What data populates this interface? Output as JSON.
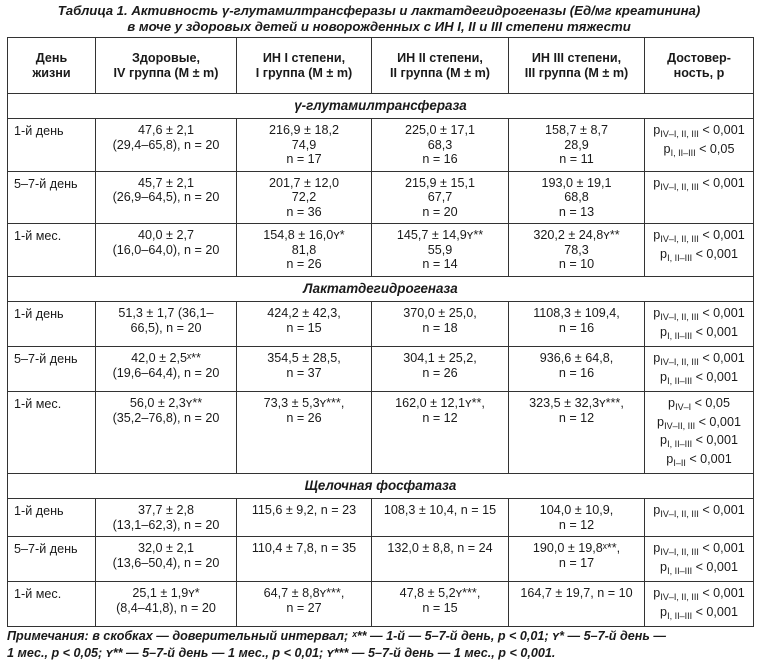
{
  "caption": {
    "line1": "Таблица 1. Активность γ-глутамилтрансферазы и лактатдегидрогеназы (Ед/мг креатинина)",
    "line2": "в моче у здоровых детей и новорожденных с ИН I, II и III степени тяжести"
  },
  "headers": [
    [
      "День",
      "жизни"
    ],
    [
      "Здоровые,",
      "IV группа (M ± m)"
    ],
    [
      "ИН I степени,",
      "I группа (M ± m)"
    ],
    [
      "ИН II степени,",
      "II группа (M ± m)"
    ],
    [
      "ИН III степени,",
      "III группа (M ± m)"
    ],
    [
      "Достовер-",
      "ность, p"
    ]
  ],
  "sections": [
    {
      "title": "γ-глутамилтрансфераза",
      "rows": [
        {
          "day": "1-й день",
          "cells": [
            [
              "47,6 ± 2,1",
              "(29,4–65,8), n = 20"
            ],
            [
              "216,9 ± 18,2",
              "74,9",
              "n = 17"
            ],
            [
              "225,0 ± 17,1",
              "68,3",
              "n = 16"
            ],
            [
              "158,7 ± 8,7",
              "28,9",
              "n = 11"
            ]
          ],
          "p": [
            {
              "s": "IV–I, II, III",
              "t": " < 0,001"
            },
            {
              "s": "I, II–III",
              "t": " < 0,05"
            }
          ]
        },
        {
          "day": "5–7-й день",
          "cells": [
            [
              "45,7 ± 2,1",
              "(26,9–64,5), n = 20"
            ],
            [
              "201,7 ± 12,0",
              "72,2",
              "n = 36"
            ],
            [
              "215,9 ± 15,1",
              "67,7",
              "n = 20"
            ],
            [
              "193,0 ± 19,1",
              "68,8",
              "n = 13"
            ]
          ],
          "p": [
            {
              "s": "IV–I, II, III",
              "t": " < 0,001"
            }
          ]
        },
        {
          "day": "1-й мес.",
          "cells": [
            [
              "40,0 ± 2,7",
              "(16,0–64,0), n = 20"
            ],
            [
              "154,8 ± 16,0ʏ*",
              "81,8",
              "n = 26"
            ],
            [
              "145,7 ± 14,9ʏ**",
              "55,9",
              "n = 14"
            ],
            [
              "320,2 ± 24,8ʏ**",
              "78,3",
              "n = 10"
            ]
          ],
          "p": [
            {
              "s": "IV–I, II, III",
              "t": " < 0,001"
            },
            {
              "s": "I, II–III",
              "t": " < 0,001"
            }
          ]
        }
      ]
    },
    {
      "title": "Лактатдегидрогеназа",
      "rows": [
        {
          "day": "1-й день",
          "cells": [
            [
              "51,3 ± 1,7 (36,1–",
              "66,5), n = 20"
            ],
            [
              "424,2 ± 42,3,",
              "n = 15"
            ],
            [
              "370,0 ± 25,0,",
              "n = 18"
            ],
            [
              "1108,3 ± 109,4,",
              "n = 16"
            ]
          ],
          "p": [
            {
              "s": "IV–I, II, III",
              "t": " < 0,001"
            },
            {
              "s": "I, II–III",
              "t": " < 0,001"
            }
          ]
        },
        {
          "day": "5–7-й день",
          "cells": [
            [
              "42,0 ± 2,5ˣ**",
              "(19,6–64,4), n = 20"
            ],
            [
              "354,5 ± 28,5,",
              "n = 37"
            ],
            [
              "304,1 ± 25,2,",
              "n = 26"
            ],
            [
              "936,6 ± 64,8,",
              "n = 16"
            ]
          ],
          "p": [
            {
              "s": "IV–I, II, III",
              "t": " < 0,001"
            },
            {
              "s": "I, II–III",
              "t": " < 0,001"
            }
          ]
        },
        {
          "day": "1-й мес.",
          "cells": [
            [
              "56,0 ± 2,3ʏ**",
              "(35,2–76,8), n = 20"
            ],
            [
              "73,3 ± 5,3ʏ***,",
              "n = 26"
            ],
            [
              "162,0 ± 12,1ʏ**,",
              "n = 12"
            ],
            [
              "323,5 ± 32,3ʏ***,",
              "n = 12"
            ]
          ],
          "p": [
            {
              "s": "IV–I",
              "t": " < 0,05"
            },
            {
              "s": "IV–II, III",
              "t": " < 0,001"
            },
            {
              "s": "I, II–III",
              "t": " < 0,001"
            },
            {
              "s": "I–II",
              "t": " < 0,001"
            }
          ]
        }
      ]
    },
    {
      "title": "Щелочная фосфатаза",
      "rows": [
        {
          "day": "1-й день",
          "cells": [
            [
              "37,7 ± 2,8",
              "(13,1–62,3), n = 20"
            ],
            [
              "115,6 ± 9,2, n = 23"
            ],
            [
              "108,3 ± 10,4, n = 15"
            ],
            [
              "104,0 ± 10,9,",
              "n = 12"
            ]
          ],
          "p": [
            {
              "s": "IV–I, II, III",
              "t": " < 0,001"
            }
          ]
        },
        {
          "day": "5–7-й день",
          "cells": [
            [
              "32,0 ± 2,1",
              "(13,6–50,4), n = 20"
            ],
            [
              "110,4 ± 7,8, n = 35"
            ],
            [
              "132,0 ± 8,8, n = 24"
            ],
            [
              "190,0 ± 19,8ˣ**,",
              "n = 17"
            ]
          ],
          "p": [
            {
              "s": "IV–I, II, III",
              "t": " < 0,001"
            },
            {
              "s": "I, II–III",
              "t": " < 0,001"
            }
          ]
        },
        {
          "day": "1-й мес.",
          "cells": [
            [
              "25,1 ± 1,9ʏ*",
              "(8,4–41,8), n = 20"
            ],
            [
              "64,7 ± 8,8ʏ***,",
              "n = 27"
            ],
            [
              "47,8 ± 5,2ʏ***,",
              "n = 15"
            ],
            [
              "164,7 ± 19,7, n = 10"
            ]
          ],
          "p": [
            {
              "s": "IV–I, II, III",
              "t": " < 0,001"
            },
            {
              "s": "I, II–III",
              "t": " < 0,001"
            }
          ]
        }
      ]
    }
  ],
  "notes": [
    "Примечания: в скобках — доверительный интервал; ˣ** — 1-й — 5–7-й день, p < 0,01; ʏ* — 5–7-й день —",
    "1 мес., p < 0,05; ʏ** — 5–7-й день — 1 мес., p < 0,01; ʏ*** — 5–7-й день — 1 мес., p < 0,001."
  ]
}
